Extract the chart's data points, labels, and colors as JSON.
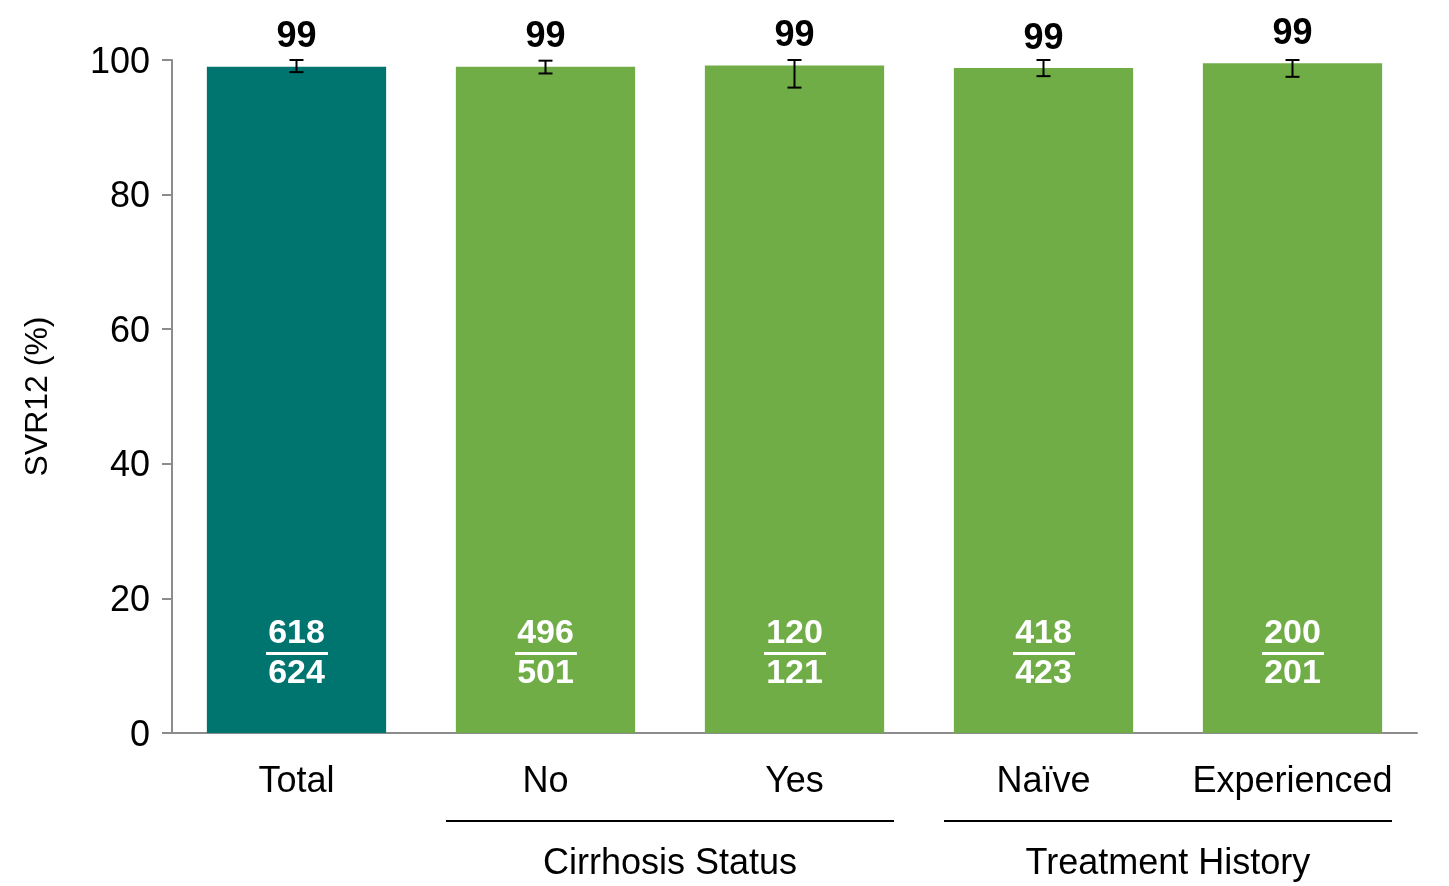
{
  "chart_data": {
    "type": "bar",
    "ylabel": "SVR12 (%)",
    "categories": [
      "Total",
      "No",
      "Yes",
      "Naïve",
      "Experienced"
    ],
    "values": [
      99.0,
      99.0,
      99.2,
      98.8,
      99.5
    ],
    "colors": [
      "#00756f",
      "#70ad47",
      "#70ad47",
      "#70ad47",
      "#70ad47"
    ],
    "errors": [
      [
        98.2,
        100
      ],
      [
        98.0,
        99.9
      ],
      [
        95.9,
        100
      ],
      [
        97.6,
        100
      ],
      [
        97.5,
        100
      ]
    ],
    "value_labels": [
      "99",
      "99",
      "99",
      "99",
      "99"
    ],
    "ylim": [
      0,
      100
    ],
    "yticks": [
      0,
      20,
      40,
      60,
      80,
      100
    ],
    "grid": false,
    "annotations": [
      "618\n624",
      "496\n501",
      "120\n121",
      "418\n423",
      "200\n201",
      "Cirrhosis Status",
      "Treatment History"
    ]
  }
}
